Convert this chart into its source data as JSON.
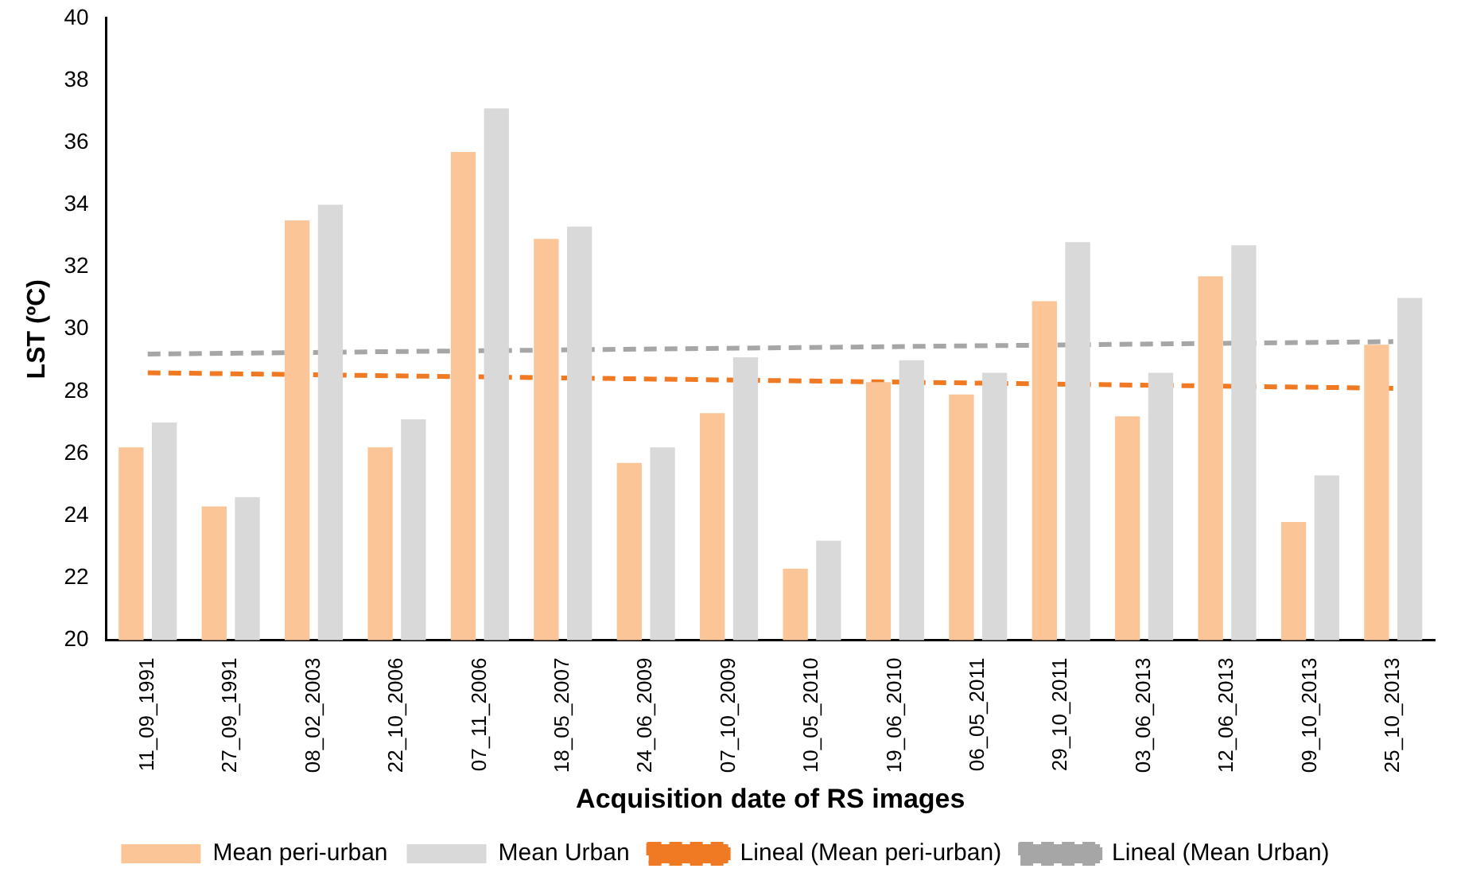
{
  "chart_data": {
    "type": "bar",
    "xlabel": "Acquisition date of RS images",
    "ylabel": "LST (ºC)",
    "categories": [
      "11_09_1991",
      "27_09_1991",
      "08_02_2003",
      "22_10_2006",
      "07_11_2006",
      "18_05_2007",
      "24_06_2009",
      "07_10_2009",
      "10_05_2010",
      "19_06_2010",
      "06_05_2011",
      "29_10_2011",
      "03_06_2013",
      "12_06_2013",
      "09_10_2013",
      "25_10_2013"
    ],
    "series": [
      {
        "name": "Mean peri-urban",
        "color": "#fbc597",
        "values": [
          26.2,
          24.3,
          33.5,
          26.2,
          35.7,
          32.9,
          25.7,
          27.3,
          22.3,
          28.3,
          27.9,
          30.9,
          27.2,
          31.7,
          23.8,
          29.5
        ]
      },
      {
        "name": "Mean Urban",
        "color": "#d9d9d9",
        "values": [
          27.0,
          24.6,
          34.0,
          27.1,
          37.1,
          33.3,
          26.2,
          29.1,
          23.2,
          29.0,
          28.6,
          32.8,
          28.6,
          32.7,
          25.3,
          31.0
        ]
      },
      {
        "name": "Lineal (Mean peri-urban)",
        "type": "line",
        "line_style": "dashed",
        "color": "#f07a24",
        "x": [
          "11_09_1991",
          "25_10_2013"
        ],
        "values": [
          28.6,
          28.1
        ]
      },
      {
        "name": "Lineal (Mean Urban)",
        "type": "line",
        "line_style": "dashed",
        "color": "#a6a6a6",
        "x": [
          "11_09_1991",
          "25_10_2013"
        ],
        "values": [
          29.2,
          29.6
        ]
      }
    ],
    "ylim": [
      20,
      40
    ],
    "yticks": [
      20,
      22,
      24,
      26,
      28,
      30,
      32,
      34,
      36,
      38,
      40
    ],
    "grid": false,
    "legend": "bottom",
    "marker": "none"
  }
}
